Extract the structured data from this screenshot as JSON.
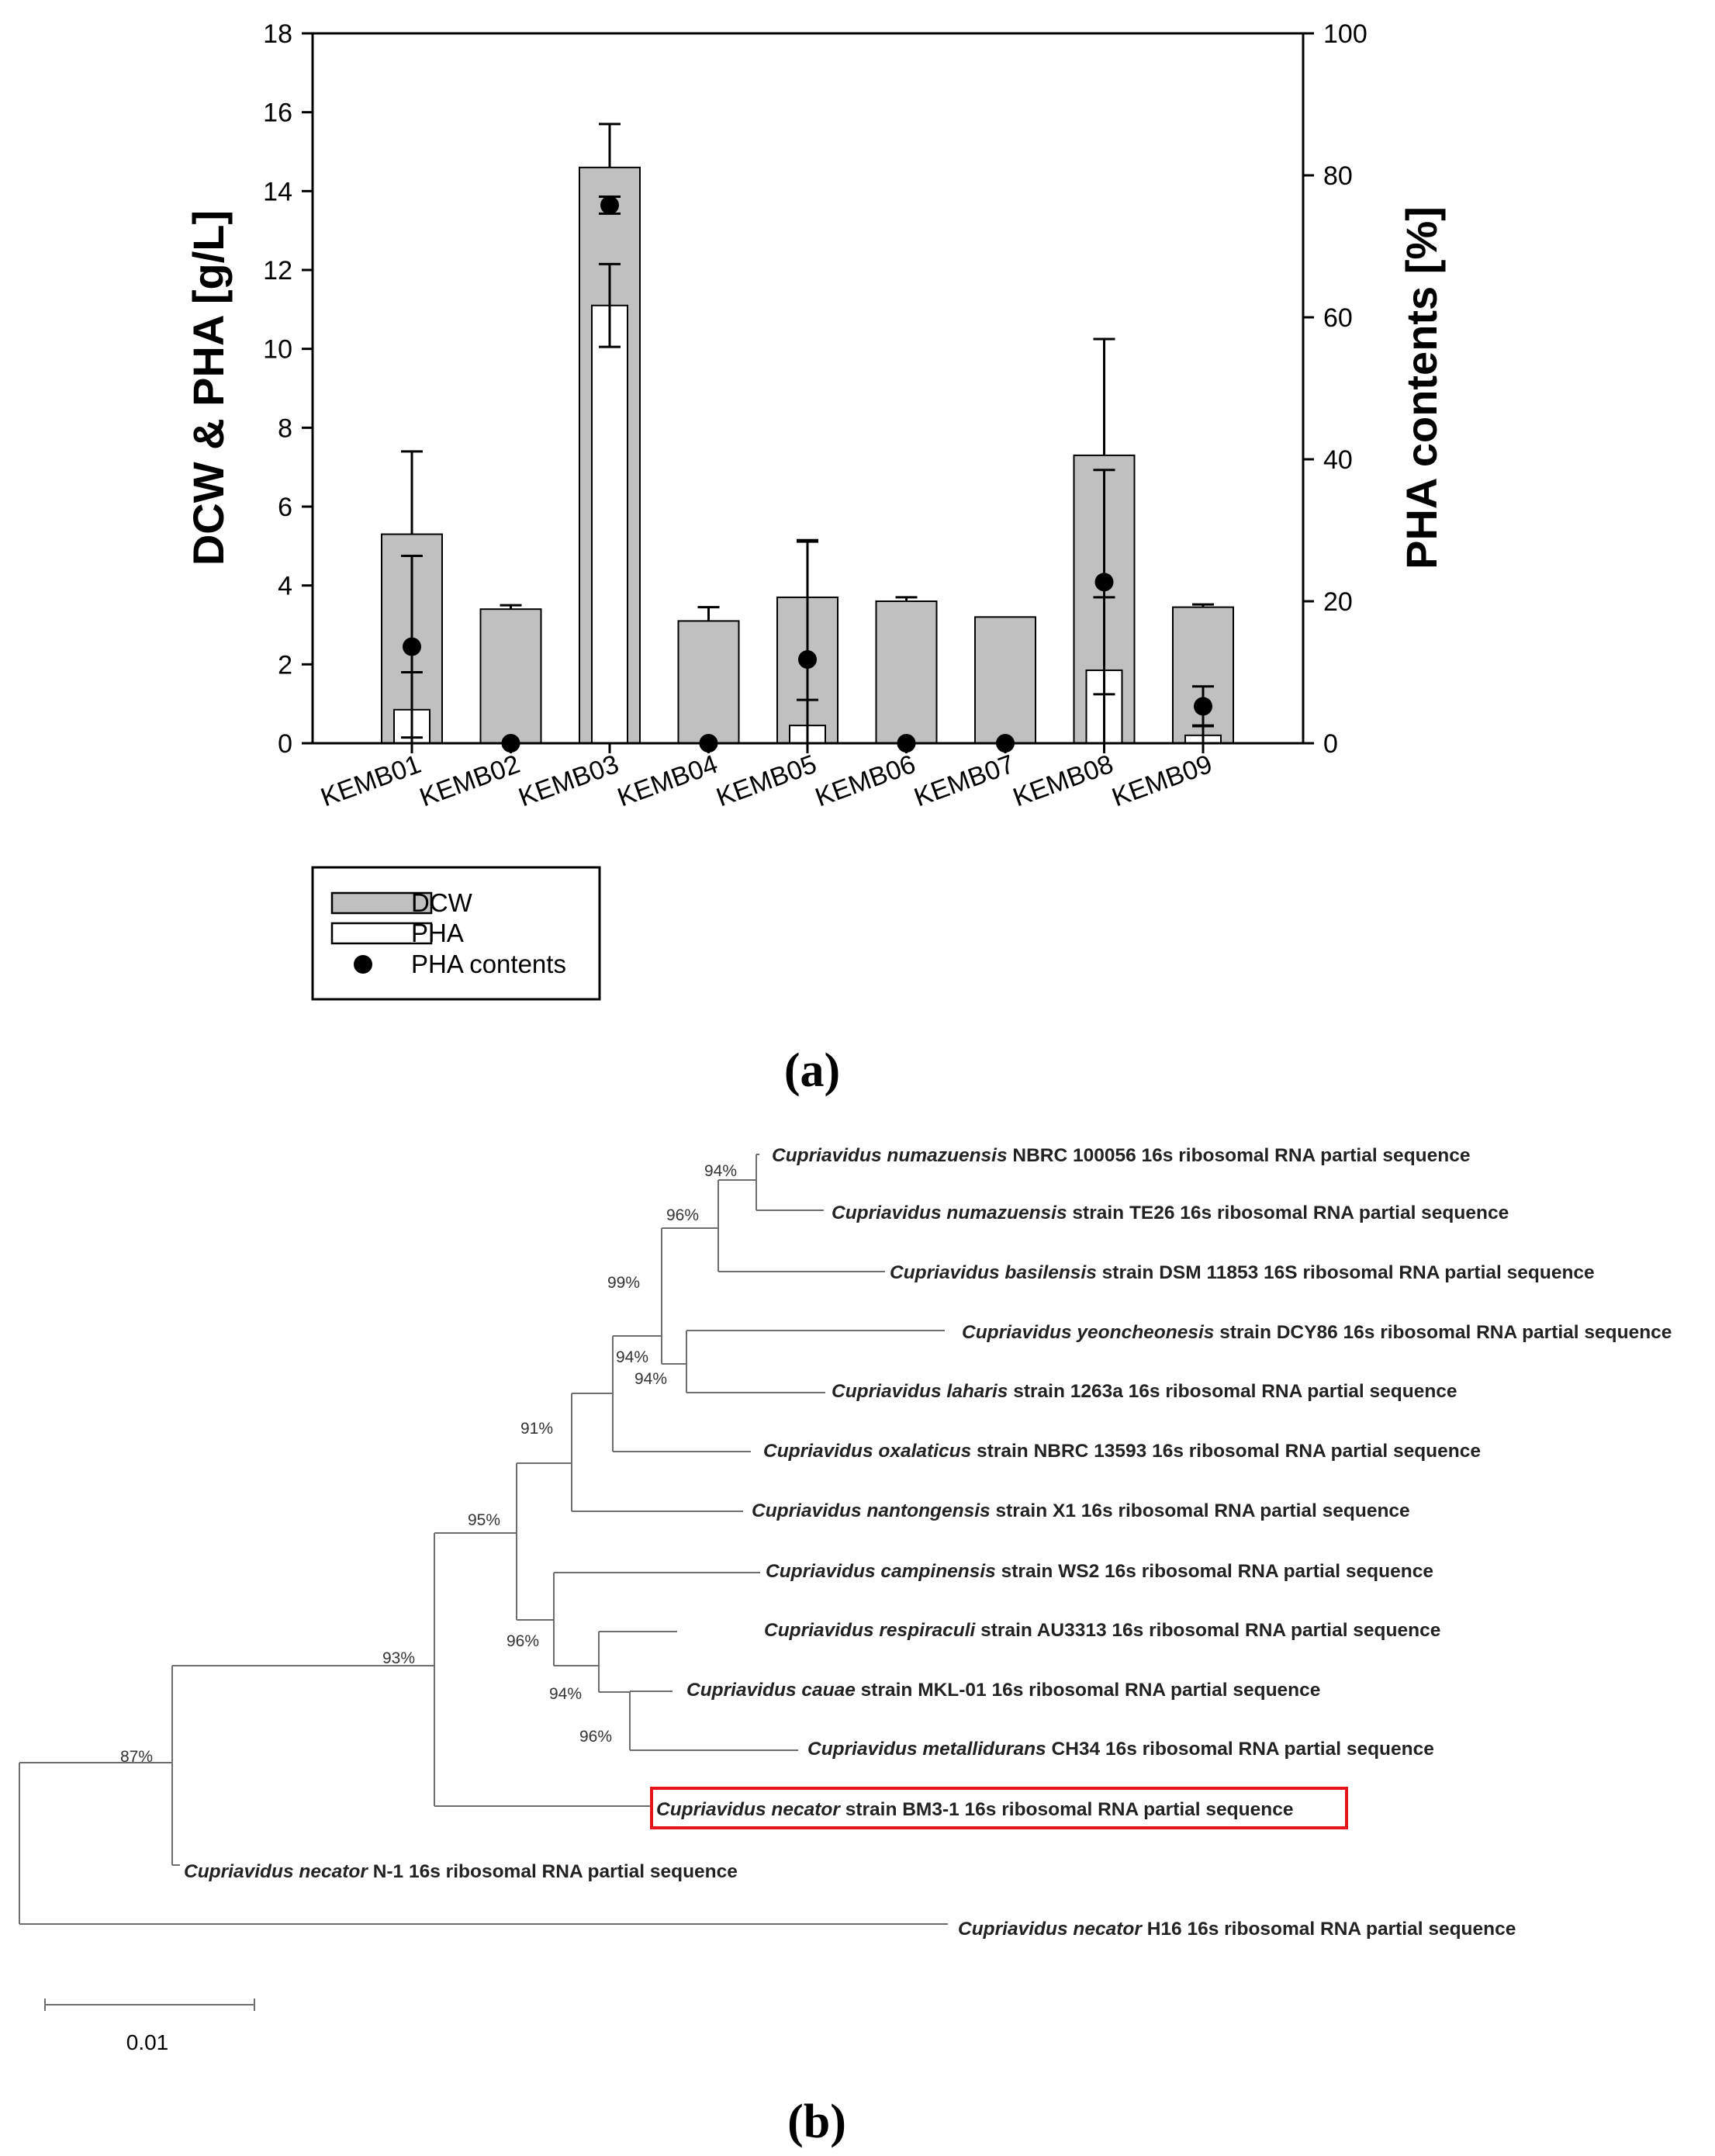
{
  "colors": {
    "dcw": "#c0c0c0",
    "pha": "#ffffff",
    "point": "#000000",
    "highlight": "#e8141c",
    "tree": "#6e6e6e"
  },
  "panel_a": {
    "label": "(a)",
    "y_left_title": "DCW & PHA [g/L]",
    "y_right_title": "PHA contents [%]",
    "legend": {
      "dcw": "DCW",
      "pha": "PHA",
      "contents": "PHA contents"
    }
  },
  "panel_b": {
    "label": "(b)",
    "scale_label": "0.01",
    "scale_value": 0.01,
    "leaves": [
      {
        "species": "Cupriavidus numazuensis",
        "rest": " NBRC 100056 16s ribosomal RNA partial sequence"
      },
      {
        "species": "Cupriavidus numazuensis",
        "rest": " strain TE26 16s ribosomal RNA partial sequence"
      },
      {
        "species": "Cupriavidus basilensis",
        "rest": " strain DSM 11853 16S ribosomal RNA partial sequence"
      },
      {
        "species": "Cupriavidus yeoncheonesis",
        "rest": " strain DCY86 16s ribosomal RNA partial sequence"
      },
      {
        "species": "Cupriavidus laharis",
        "rest": " strain 1263a 16s ribosomal RNA partial sequence"
      },
      {
        "species": "Cupriavidus oxalaticus",
        "rest": " strain NBRC 13593 16s ribosomal RNA partial sequence"
      },
      {
        "species": "Cupriavidus nantongensis",
        "rest": " strain X1 16s ribosomal RNA partial sequence"
      },
      {
        "species": "Cupriavidus campinensis",
        "rest": " strain WS2 16s ribosomal RNA partial sequence"
      },
      {
        "species": "Cupriavidus respiraculi",
        "rest": " strain AU3313 16s ribosomal RNA partial sequence"
      },
      {
        "species": "Cupriavidus cauae",
        "rest": " strain MKL-01 16s ribosomal RNA partial sequence"
      },
      {
        "species": "Cupriavidus metallidurans",
        "rest": " CH34 16s ribosomal RNA partial sequence"
      },
      {
        "species": "Cupriavidus necator",
        "rest": " strain BM3-1 16s ribosomal RNA partial sequence"
      },
      {
        "species": "Cupriavidus necator",
        "rest": "  N-1 16s ribosomal RNA partial sequence"
      },
      {
        "species": "Cupriavidus necator",
        "rest": " H16 16s ribosomal RNA partial sequence"
      }
    ],
    "bootstraps": [
      "94%",
      "96%",
      "99%",
      "94%",
      "94%",
      "91%",
      "95%",
      "96%",
      "94%",
      "96%",
      "93%",
      "87%"
    ]
  },
  "chart_data": {
    "type": "bar",
    "categories": [
      "KEMB01",
      "KEMB02",
      "KEMB03",
      "KEMB04",
      "KEMB05",
      "KEMB06",
      "KEMB07",
      "KEMB08",
      "KEMB09"
    ],
    "series": [
      {
        "name": "DCW",
        "axis": "left",
        "type": "bar",
        "values": [
          5.3,
          3.4,
          14.6,
          3.1,
          3.7,
          3.6,
          3.2,
          7.3,
          3.45
        ],
        "errors": [
          2.1,
          0.1,
          1.1,
          0.35,
          1.45,
          0.1,
          0,
          2.95,
          0.07
        ]
      },
      {
        "name": "PHA",
        "axis": "left",
        "type": "bar",
        "values": [
          0.85,
          0,
          11.1,
          0,
          0.45,
          0,
          0,
          1.85,
          0.2
        ],
        "errors": [
          0.95,
          0,
          1.05,
          0,
          0.65,
          0,
          0,
          1.85,
          0.25
        ]
      },
      {
        "name": "PHA contents",
        "axis": "right",
        "type": "scatter",
        "values": [
          13.6,
          0,
          75.8,
          0,
          11.8,
          0,
          0,
          22.7,
          5.2
        ],
        "errors": [
          12.8,
          0,
          1.2,
          0,
          16.6,
          0,
          0,
          15.8,
          2.8
        ]
      }
    ],
    "ylabel": "DCW & PHA [g/L]",
    "ylim": [
      0,
      18
    ],
    "yticks": [
      0,
      2,
      4,
      6,
      8,
      10,
      12,
      14,
      16,
      18
    ],
    "y2label": "PHA contents [%]",
    "y2lim": [
      0,
      100
    ],
    "y2ticks": [
      0,
      20,
      40,
      60,
      80,
      100
    ],
    "legend": "below"
  }
}
